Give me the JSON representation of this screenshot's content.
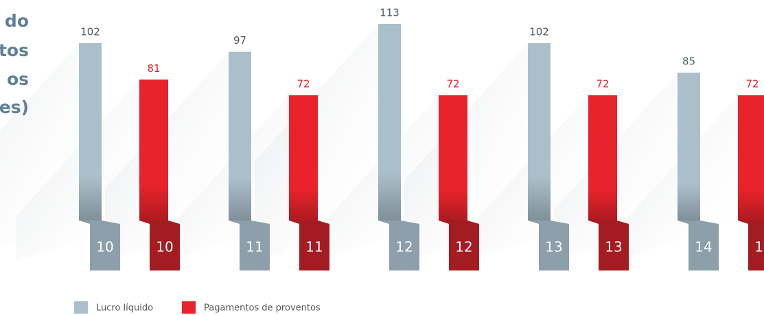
{
  "chart_data": {
    "type": "bar",
    "title_lines": [
      "do",
      "ntos",
      "os",
      "es)"
    ],
    "categories": [
      "10",
      "11",
      "12",
      "13",
      "14"
    ],
    "series": [
      {
        "name": "Lucro líquido",
        "color": "#abbfcb",
        "values": [
          102,
          97,
          113,
          102,
          85
        ]
      },
      {
        "name": "Pagamentos de proventos",
        "color": "#e8232b",
        "values": [
          81,
          72,
          72,
          72,
          72
        ]
      }
    ]
  }
}
